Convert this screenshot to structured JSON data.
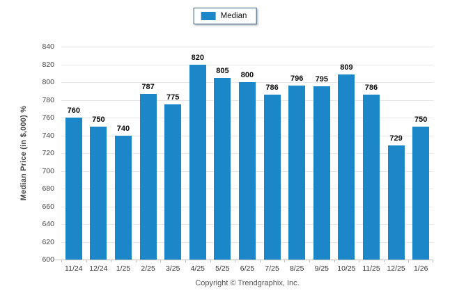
{
  "chart_data": {
    "type": "bar",
    "title": "",
    "legend": [
      {
        "label": "Median"
      }
    ],
    "legend_position": "top-center",
    "categories": [
      "11/24",
      "12/24",
      "1/25",
      "2/25",
      "3/25",
      "4/25",
      "5/25",
      "6/25",
      "7/25",
      "8/25",
      "9/25",
      "10/25",
      "11/25",
      "12/25",
      "1/26"
    ],
    "series": [
      {
        "name": "Median",
        "values": [
          760,
          750,
          740,
          787,
          775,
          820,
          805,
          800,
          786,
          796,
          795,
          809,
          786,
          729,
          750
        ]
      }
    ],
    "xlabel": "",
    "ylabel": "Median Price (in $,000) %",
    "ylim": [
      600,
      840
    ],
    "ytick_step": 20,
    "yticks": [
      600,
      620,
      640,
      660,
      680,
      700,
      720,
      740,
      760,
      780,
      800,
      820,
      840
    ],
    "grid": "horizontal",
    "value_labels": "above-bars"
  },
  "colors": {
    "bar": "#1b87c9",
    "grid": "#e6e6e6",
    "axis": "#c0c0c0",
    "legend_border": "#3b5a76"
  },
  "footer": {
    "copyright": "Copyright © Trendgraphix, Inc."
  }
}
